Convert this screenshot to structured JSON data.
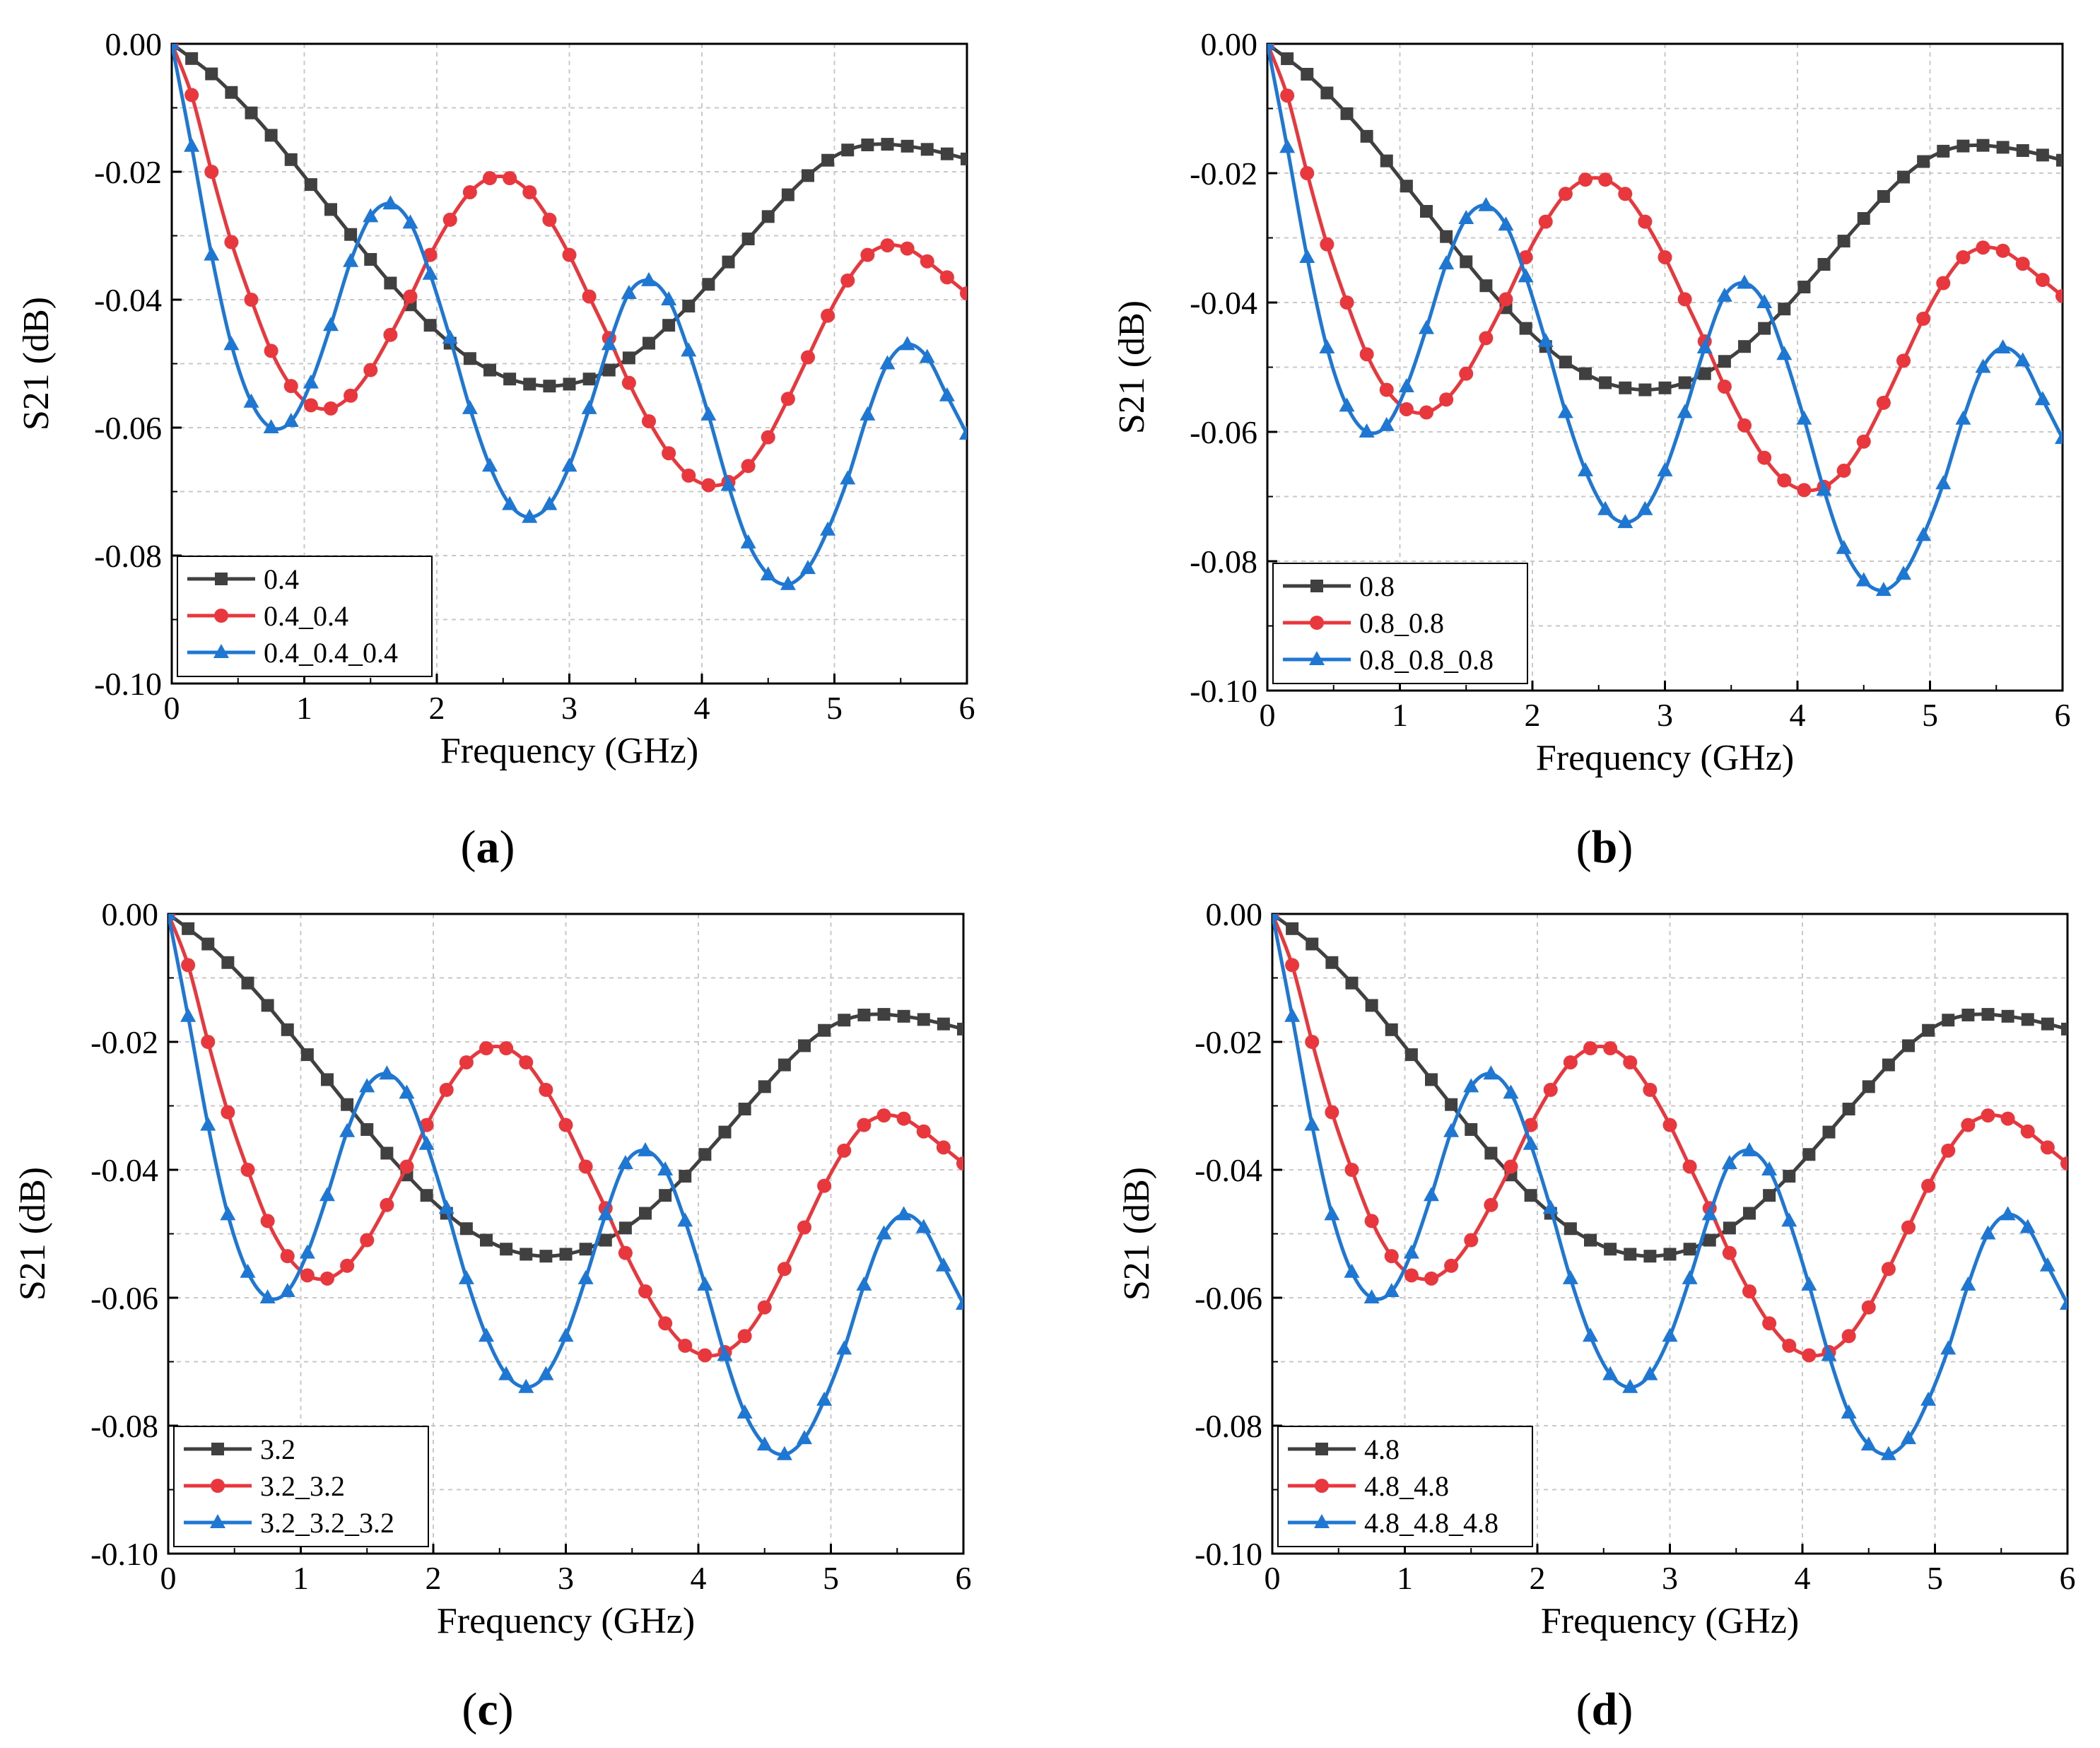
{
  "figure": {
    "colors": {
      "black": "#404040",
      "red": "#e8383d",
      "blue": "#1f77d4",
      "grid": "#c8c8c8"
    },
    "markers": [
      "square",
      "circle",
      "triangle"
    ]
  },
  "chart_data": [
    {
      "type": "line",
      "panel_label": "a",
      "xlabel": "Frequency (GHz)",
      "ylabel": "S21 (dB)",
      "xlim": [
        0,
        6
      ],
      "ylim": [
        -0.1,
        0.0
      ],
      "xticks": [
        "0",
        "1",
        "2",
        "3",
        "4",
        "5",
        "6"
      ],
      "yticks": [
        "0.00",
        "-0.02",
        "-0.04",
        "-0.06",
        "-0.08",
        "-0.10"
      ],
      "grid": true,
      "legend_position": "bottom-left",
      "x": [
        0,
        0.15,
        0.3,
        0.45,
        0.6,
        0.75,
        0.9,
        1.05,
        1.2,
        1.35,
        1.5,
        1.65,
        1.8,
        1.95,
        2.1,
        2.25,
        2.4,
        2.55,
        2.7,
        2.85,
        3.0,
        3.15,
        3.3,
        3.45,
        3.6,
        3.75,
        3.9,
        4.05,
        4.2,
        4.35,
        4.5,
        4.65,
        4.8,
        4.95,
        5.1,
        5.25,
        5.4,
        5.55,
        5.7,
        5.85,
        6.0
      ],
      "series": [
        {
          "name": "0.4",
          "marker": "square",
          "values": [
            -0.0,
            -0.0023,
            -0.0047,
            -0.0076,
            -0.0108,
            -0.0143,
            -0.0181,
            -0.022,
            -0.0259,
            -0.0298,
            -0.0337,
            -0.0374,
            -0.0408,
            -0.044,
            -0.0468,
            -0.0492,
            -0.051,
            -0.0524,
            -0.0532,
            -0.0535,
            -0.0532,
            -0.0524,
            -0.051,
            -0.0491,
            -0.0468,
            -0.044,
            -0.041,
            -0.0376,
            -0.0341,
            -0.0305,
            -0.027,
            -0.0236,
            -0.0206,
            -0.0182,
            -0.0166,
            -0.0158,
            -0.0157,
            -0.016,
            -0.0165,
            -0.0172,
            -0.018
          ]
        },
        {
          "name": "0.4_0.4",
          "marker": "circle",
          "values": [
            -0.0,
            -0.008,
            -0.02,
            -0.031,
            -0.04,
            -0.048,
            -0.0535,
            -0.0565,
            -0.057,
            -0.055,
            -0.051,
            -0.0455,
            -0.0395,
            -0.033,
            -0.0275,
            -0.0232,
            -0.021,
            -0.021,
            -0.0232,
            -0.0275,
            -0.033,
            -0.0395,
            -0.046,
            -0.053,
            -0.059,
            -0.064,
            -0.0675,
            -0.069,
            -0.0685,
            -0.066,
            -0.0615,
            -0.0555,
            -0.049,
            -0.0425,
            -0.037,
            -0.033,
            -0.0315,
            -0.032,
            -0.034,
            -0.0365,
            -0.039
          ]
        },
        {
          "name": "0.4_0.4_0.4",
          "marker": "triangle",
          "values": [
            -0.0,
            -0.016,
            -0.033,
            -0.047,
            -0.056,
            -0.06,
            -0.059,
            -0.053,
            -0.044,
            -0.034,
            -0.027,
            -0.025,
            -0.028,
            -0.036,
            -0.046,
            -0.057,
            -0.066,
            -0.072,
            -0.074,
            -0.072,
            -0.066,
            -0.057,
            -0.047,
            -0.039,
            -0.037,
            -0.04,
            -0.048,
            -0.058,
            -0.069,
            -0.078,
            -0.083,
            -0.0845,
            -0.082,
            -0.076,
            -0.068,
            -0.058,
            -0.05,
            -0.047,
            -0.049,
            -0.055,
            -0.061
          ]
        }
      ]
    },
    {
      "type": "line",
      "panel_label": "b",
      "xlabel": "Frequency (GHz)",
      "ylabel": "S21 (dB)",
      "xlim": [
        0,
        6
      ],
      "ylim": [
        -0.1,
        0.0
      ],
      "xticks": [
        "0",
        "1",
        "2",
        "3",
        "4",
        "5",
        "6"
      ],
      "yticks": [
        "0.00",
        "-0.02",
        "-0.04",
        "-0.06",
        "-0.08",
        "-0.10"
      ],
      "grid": true,
      "legend_position": "bottom-left",
      "x": [
        0,
        0.15,
        0.3,
        0.45,
        0.6,
        0.75,
        0.9,
        1.05,
        1.2,
        1.35,
        1.5,
        1.65,
        1.8,
        1.95,
        2.1,
        2.25,
        2.4,
        2.55,
        2.7,
        2.85,
        3.0,
        3.15,
        3.3,
        3.45,
        3.6,
        3.75,
        3.9,
        4.05,
        4.2,
        4.35,
        4.5,
        4.65,
        4.8,
        4.95,
        5.1,
        5.25,
        5.4,
        5.55,
        5.7,
        5.85,
        6.0
      ],
      "series": [
        {
          "name": "0.8",
          "marker": "square",
          "values": [
            -0.0,
            -0.0023,
            -0.0047,
            -0.0076,
            -0.0108,
            -0.0143,
            -0.0181,
            -0.022,
            -0.0259,
            -0.0298,
            -0.0337,
            -0.0374,
            -0.0408,
            -0.044,
            -0.0468,
            -0.0492,
            -0.051,
            -0.0524,
            -0.0532,
            -0.0535,
            -0.0532,
            -0.0524,
            -0.051,
            -0.0491,
            -0.0468,
            -0.044,
            -0.041,
            -0.0376,
            -0.0341,
            -0.0305,
            -0.027,
            -0.0236,
            -0.0206,
            -0.0182,
            -0.0166,
            -0.0158,
            -0.0157,
            -0.016,
            -0.0165,
            -0.0172,
            -0.018
          ]
        },
        {
          "name": "0.8_0.8",
          "marker": "circle",
          "values": [
            -0.0,
            -0.008,
            -0.02,
            -0.031,
            -0.04,
            -0.048,
            -0.0535,
            -0.0565,
            -0.057,
            -0.055,
            -0.051,
            -0.0455,
            -0.0395,
            -0.033,
            -0.0275,
            -0.0232,
            -0.021,
            -0.021,
            -0.0232,
            -0.0275,
            -0.033,
            -0.0395,
            -0.046,
            -0.053,
            -0.059,
            -0.064,
            -0.0675,
            -0.069,
            -0.0685,
            -0.066,
            -0.0615,
            -0.0555,
            -0.049,
            -0.0425,
            -0.037,
            -0.033,
            -0.0315,
            -0.032,
            -0.034,
            -0.0365,
            -0.039
          ]
        },
        {
          "name": "0.8_0.8_0.8",
          "marker": "triangle",
          "values": [
            -0.0,
            -0.016,
            -0.033,
            -0.047,
            -0.056,
            -0.06,
            -0.059,
            -0.053,
            -0.044,
            -0.034,
            -0.027,
            -0.025,
            -0.028,
            -0.036,
            -0.046,
            -0.057,
            -0.066,
            -0.072,
            -0.074,
            -0.072,
            -0.066,
            -0.057,
            -0.047,
            -0.039,
            -0.037,
            -0.04,
            -0.048,
            -0.058,
            -0.069,
            -0.078,
            -0.083,
            -0.0845,
            -0.082,
            -0.076,
            -0.068,
            -0.058,
            -0.05,
            -0.047,
            -0.049,
            -0.055,
            -0.061
          ]
        }
      ]
    },
    {
      "type": "line",
      "panel_label": "c",
      "xlabel": "Frequency (GHz)",
      "ylabel": "S21 (dB)",
      "xlim": [
        0,
        6
      ],
      "ylim": [
        -0.1,
        0.0
      ],
      "xticks": [
        "0",
        "1",
        "2",
        "3",
        "4",
        "5",
        "6"
      ],
      "yticks": [
        "0.00",
        "-0.02",
        "-0.04",
        "-0.06",
        "-0.08",
        "-0.10"
      ],
      "grid": true,
      "legend_position": "bottom-left",
      "x": [
        0,
        0.15,
        0.3,
        0.45,
        0.6,
        0.75,
        0.9,
        1.05,
        1.2,
        1.35,
        1.5,
        1.65,
        1.8,
        1.95,
        2.1,
        2.25,
        2.4,
        2.55,
        2.7,
        2.85,
        3.0,
        3.15,
        3.3,
        3.45,
        3.6,
        3.75,
        3.9,
        4.05,
        4.2,
        4.35,
        4.5,
        4.65,
        4.8,
        4.95,
        5.1,
        5.25,
        5.4,
        5.55,
        5.7,
        5.85,
        6.0
      ],
      "series": [
        {
          "name": "3.2",
          "marker": "square",
          "values": [
            -0.0,
            -0.0023,
            -0.0047,
            -0.0076,
            -0.0108,
            -0.0143,
            -0.0181,
            -0.022,
            -0.0259,
            -0.0298,
            -0.0337,
            -0.0374,
            -0.0408,
            -0.044,
            -0.0468,
            -0.0492,
            -0.051,
            -0.0524,
            -0.0532,
            -0.0535,
            -0.0532,
            -0.0524,
            -0.051,
            -0.0491,
            -0.0468,
            -0.044,
            -0.041,
            -0.0376,
            -0.0341,
            -0.0305,
            -0.027,
            -0.0236,
            -0.0206,
            -0.0182,
            -0.0166,
            -0.0158,
            -0.0157,
            -0.016,
            -0.0165,
            -0.0172,
            -0.018
          ]
        },
        {
          "name": "3.2_3.2",
          "marker": "circle",
          "values": [
            -0.0,
            -0.008,
            -0.02,
            -0.031,
            -0.04,
            -0.048,
            -0.0535,
            -0.0565,
            -0.057,
            -0.055,
            -0.051,
            -0.0455,
            -0.0395,
            -0.033,
            -0.0275,
            -0.0232,
            -0.021,
            -0.021,
            -0.0232,
            -0.0275,
            -0.033,
            -0.0395,
            -0.046,
            -0.053,
            -0.059,
            -0.064,
            -0.0675,
            -0.069,
            -0.0685,
            -0.066,
            -0.0615,
            -0.0555,
            -0.049,
            -0.0425,
            -0.037,
            -0.033,
            -0.0315,
            -0.032,
            -0.034,
            -0.0365,
            -0.039
          ]
        },
        {
          "name": "3.2_3.2_3.2",
          "marker": "triangle",
          "values": [
            -0.0,
            -0.016,
            -0.033,
            -0.047,
            -0.056,
            -0.06,
            -0.059,
            -0.053,
            -0.044,
            -0.034,
            -0.027,
            -0.025,
            -0.028,
            -0.036,
            -0.046,
            -0.057,
            -0.066,
            -0.072,
            -0.074,
            -0.072,
            -0.066,
            -0.057,
            -0.047,
            -0.039,
            -0.037,
            -0.04,
            -0.048,
            -0.058,
            -0.069,
            -0.078,
            -0.083,
            -0.0845,
            -0.082,
            -0.076,
            -0.068,
            -0.058,
            -0.05,
            -0.047,
            -0.049,
            -0.055,
            -0.061
          ]
        }
      ]
    },
    {
      "type": "line",
      "panel_label": "d",
      "xlabel": "Frequency (GHz)",
      "ylabel": "S21 (dB)",
      "xlim": [
        0,
        6
      ],
      "ylim": [
        -0.1,
        0.0
      ],
      "xticks": [
        "0",
        "1",
        "2",
        "3",
        "4",
        "5",
        "6"
      ],
      "yticks": [
        "0.00",
        "-0.02",
        "-0.04",
        "-0.06",
        "-0.08",
        "-0.10"
      ],
      "grid": true,
      "legend_position": "bottom-left",
      "x": [
        0,
        0.15,
        0.3,
        0.45,
        0.6,
        0.75,
        0.9,
        1.05,
        1.2,
        1.35,
        1.5,
        1.65,
        1.8,
        1.95,
        2.1,
        2.25,
        2.4,
        2.55,
        2.7,
        2.85,
        3.0,
        3.15,
        3.3,
        3.45,
        3.6,
        3.75,
        3.9,
        4.05,
        4.2,
        4.35,
        4.5,
        4.65,
        4.8,
        4.95,
        5.1,
        5.25,
        5.4,
        5.55,
        5.7,
        5.85,
        6.0
      ],
      "series": [
        {
          "name": "4.8",
          "marker": "square",
          "values": [
            -0.0,
            -0.0023,
            -0.0047,
            -0.0076,
            -0.0108,
            -0.0143,
            -0.0181,
            -0.022,
            -0.0259,
            -0.0298,
            -0.0337,
            -0.0374,
            -0.0408,
            -0.044,
            -0.0468,
            -0.0492,
            -0.051,
            -0.0524,
            -0.0532,
            -0.0535,
            -0.0532,
            -0.0524,
            -0.051,
            -0.0491,
            -0.0468,
            -0.044,
            -0.041,
            -0.0376,
            -0.0341,
            -0.0305,
            -0.027,
            -0.0236,
            -0.0206,
            -0.0182,
            -0.0166,
            -0.0158,
            -0.0157,
            -0.016,
            -0.0165,
            -0.0172,
            -0.018
          ]
        },
        {
          "name": "4.8_4.8",
          "marker": "circle",
          "values": [
            -0.0,
            -0.008,
            -0.02,
            -0.031,
            -0.04,
            -0.048,
            -0.0535,
            -0.0565,
            -0.057,
            -0.055,
            -0.051,
            -0.0455,
            -0.0395,
            -0.033,
            -0.0275,
            -0.0232,
            -0.021,
            -0.021,
            -0.0232,
            -0.0275,
            -0.033,
            -0.0395,
            -0.046,
            -0.053,
            -0.059,
            -0.064,
            -0.0675,
            -0.069,
            -0.0685,
            -0.066,
            -0.0615,
            -0.0555,
            -0.049,
            -0.0425,
            -0.037,
            -0.033,
            -0.0315,
            -0.032,
            -0.034,
            -0.0365,
            -0.039
          ]
        },
        {
          "name": "4.8_4.8_4.8",
          "marker": "triangle",
          "values": [
            -0.0,
            -0.016,
            -0.033,
            -0.047,
            -0.056,
            -0.06,
            -0.059,
            -0.053,
            -0.044,
            -0.034,
            -0.027,
            -0.025,
            -0.028,
            -0.036,
            -0.046,
            -0.057,
            -0.066,
            -0.072,
            -0.074,
            -0.072,
            -0.066,
            -0.057,
            -0.047,
            -0.039,
            -0.037,
            -0.04,
            -0.048,
            -0.058,
            -0.069,
            -0.078,
            -0.083,
            -0.0845,
            -0.082,
            -0.076,
            -0.068,
            -0.058,
            -0.05,
            -0.047,
            -0.049,
            -0.055,
            -0.061
          ]
        }
      ]
    }
  ]
}
